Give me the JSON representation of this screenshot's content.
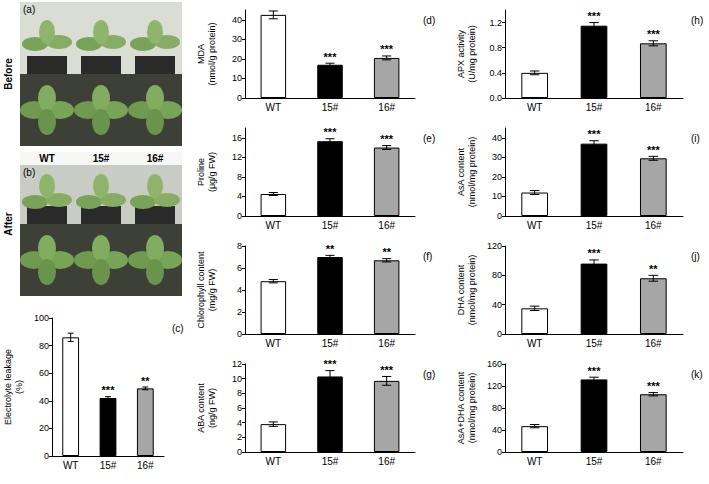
{
  "photos": [
    {
      "label": "(a)",
      "row_label": "Before"
    },
    {
      "label": "(b)",
      "row_label": "After",
      "columns": [
        "WT",
        "15#",
        "16#"
      ]
    }
  ],
  "chart_data": [
    {
      "type": "bar",
      "label": "(c)",
      "ylabel": "Electrolyte leakage (%)",
      "categories": [
        "WT",
        "15#",
        "16#"
      ],
      "values": [
        86,
        42,
        49
      ],
      "errors": [
        3,
        1,
        1
      ],
      "significance": [
        null,
        "***",
        "**"
      ],
      "colors": [
        "#ffffff",
        "#000000",
        "#a6a6a6"
      ],
      "ylim": [
        0,
        100
      ],
      "yticks": [
        0,
        20,
        40,
        60,
        80,
        100
      ],
      "grid": false
    },
    {
      "type": "bar",
      "label": "(d)",
      "ylabel": "MDA (nmol/g protein)",
      "categories": [
        "WT",
        "15#",
        "16#"
      ],
      "values": [
        42.5,
        17,
        20.5
      ],
      "errors": [
        2,
        0.8,
        1
      ],
      "significance": [
        null,
        "***",
        "***"
      ],
      "colors": [
        "#ffffff",
        "#000000",
        "#a6a6a6"
      ],
      "ylim": [
        0,
        45
      ],
      "yticks": [
        0,
        10,
        20,
        30,
        40
      ],
      "grid": false
    },
    {
      "type": "bar",
      "label": "(e)",
      "ylabel": "Proline (μg/g FW)",
      "categories": [
        "WT",
        "15#",
        "16#"
      ],
      "values": [
        4.5,
        15.3,
        14
      ],
      "errors": [
        0.3,
        0.5,
        0.4
      ],
      "significance": [
        null,
        "***",
        "***"
      ],
      "colors": [
        "#ffffff",
        "#000000",
        "#a6a6a6"
      ],
      "ylim": [
        0,
        18
      ],
      "yticks": [
        0,
        4,
        8,
        12,
        16
      ],
      "grid": false
    },
    {
      "type": "bar",
      "label": "(f)",
      "ylabel": "Chlorophyll content (mg/g FW)",
      "categories": [
        "WT",
        "15#",
        "16#"
      ],
      "values": [
        4.8,
        7.0,
        6.7
      ],
      "errors": [
        0.15,
        0.15,
        0.15
      ],
      "significance": [
        null,
        "**",
        "**"
      ],
      "colors": [
        "#ffffff",
        "#000000",
        "#a6a6a6"
      ],
      "ylim": [
        0,
        8
      ],
      "yticks": [
        0,
        2,
        4,
        6,
        8
      ],
      "grid": false
    },
    {
      "type": "bar",
      "label": "(g)",
      "ylabel": "ABA content (ng/g FW)",
      "categories": [
        "WT",
        "15#",
        "16#"
      ],
      "values": [
        3.8,
        10.3,
        9.7
      ],
      "errors": [
        0.3,
        0.8,
        0.6
      ],
      "significance": [
        null,
        "***",
        "***"
      ],
      "colors": [
        "#ffffff",
        "#000000",
        "#a6a6a6"
      ],
      "ylim": [
        0,
        12
      ],
      "yticks": [
        0,
        2,
        4,
        6,
        8,
        10,
        12
      ],
      "grid": false
    },
    {
      "type": "bar",
      "label": "(h)",
      "ylabel": "APX activity (U/mg protein)",
      "categories": [
        "WT",
        "15#",
        "16#"
      ],
      "values": [
        0.4,
        1.15,
        0.87
      ],
      "errors": [
        0.03,
        0.05,
        0.04
      ],
      "significance": [
        null,
        "***",
        "***"
      ],
      "colors": [
        "#ffffff",
        "#000000",
        "#a6a6a6"
      ],
      "ylim": [
        0,
        1.4
      ],
      "yticks": [
        {
          "value": 0,
          "label": "0.0"
        },
        0.4,
        0.8,
        1.2
      ],
      "grid": false
    },
    {
      "type": "bar",
      "label": "(i)",
      "ylabel": "AsA content (nmol/mg protein)",
      "categories": [
        "WT",
        "15#",
        "16#"
      ],
      "values": [
        12,
        37,
        29.5
      ],
      "errors": [
        1,
        1.5,
        1
      ],
      "significance": [
        null,
        "***",
        "***"
      ],
      "colors": [
        "#ffffff",
        "#000000",
        "#a6a6a6"
      ],
      "ylim": [
        0,
        45
      ],
      "yticks": [
        0,
        10,
        20,
        30,
        40
      ],
      "grid": false
    },
    {
      "type": "bar",
      "label": "(j)",
      "ylabel": "DHA content (nmol/mg protein)",
      "categories": [
        "WT",
        "15#",
        "16#"
      ],
      "values": [
        35,
        96,
        76
      ],
      "errors": [
        3,
        5,
        4
      ],
      "significance": [
        null,
        "***",
        "**"
      ],
      "colors": [
        "#ffffff",
        "#000000",
        "#a6a6a6"
      ],
      "ylim": [
        0,
        120
      ],
      "yticks": [
        0,
        40,
        80,
        120
      ],
      "grid": false
    },
    {
      "type": "bar",
      "label": "(k)",
      "ylabel": "AsA+DHA content (nmol/mg protein)",
      "categories": [
        "WT",
        "15#",
        "16#"
      ],
      "values": [
        47,
        132,
        105
      ],
      "errors": [
        3,
        4,
        3
      ],
      "significance": [
        null,
        "***",
        "***"
      ],
      "colors": [
        "#ffffff",
        "#000000",
        "#a6a6a6"
      ],
      "ylim": [
        0,
        160
      ],
      "yticks": [
        0,
        40,
        80,
        120,
        160
      ],
      "grid": false
    }
  ]
}
